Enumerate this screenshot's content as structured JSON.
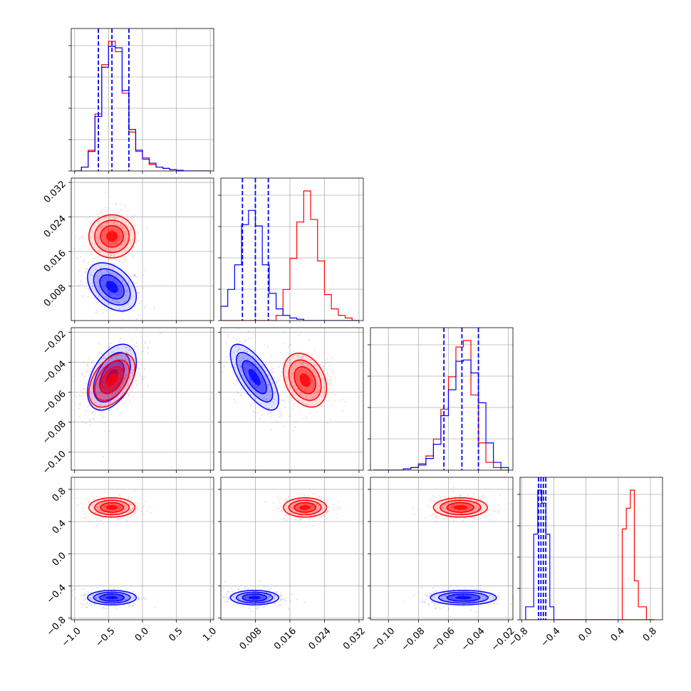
{
  "chart_data": {
    "type": "corner",
    "title": "",
    "parameters": 4,
    "series": [
      {
        "color": "#ff0000"
      },
      {
        "color": "#0000ff"
      }
    ],
    "ticks": {
      "p0": [
        {
          "v": -1.0,
          "label": "−1.0"
        },
        {
          "v": -0.5,
          "label": "−0.5"
        },
        {
          "v": 0.0,
          "label": "0.0"
        },
        {
          "v": 0.5,
          "label": "0.5"
        },
        {
          "v": 1.0,
          "label": "1.0"
        }
      ],
      "p1": [
        {
          "v": 0.008,
          "label": "0.008"
        },
        {
          "v": 0.016,
          "label": "0.016"
        },
        {
          "v": 0.024,
          "label": "0.024"
        },
        {
          "v": 0.032,
          "label": "0.032"
        }
      ],
      "p2": [
        {
          "v": -0.1,
          "label": "−0.10"
        },
        {
          "v": -0.08,
          "label": "−0.08"
        },
        {
          "v": -0.06,
          "label": "−0.06"
        },
        {
          "v": -0.04,
          "label": "−0.04"
        },
        {
          "v": -0.02,
          "label": "−0.02"
        }
      ],
      "p3": [
        {
          "v": -0.8,
          "label": "−0.8"
        },
        {
          "v": -0.4,
          "label": "−0.4"
        },
        {
          "v": 0.0,
          "label": "0.0"
        },
        {
          "v": 0.4,
          "label": "0.4"
        },
        {
          "v": 0.8,
          "label": "0.8"
        }
      ]
    },
    "axis_ranges": {
      "p0": [
        -1.05,
        1.05
      ],
      "p1": [
        0.0,
        0.033
      ],
      "p2": [
        -0.112,
        -0.017
      ],
      "p3": [
        -0.82,
        0.95
      ]
    },
    "grid": true,
    "quantile_lines_blue": {
      "p0": [
        -0.65,
        -0.45,
        -0.2
      ],
      "p1": [
        0.005,
        0.008,
        0.011
      ],
      "p2": [
        -0.063,
        -0.051,
        -0.04
      ],
      "p3": [
        -0.59,
        -0.56,
        -0.53,
        -0.5
      ]
    },
    "histograms": {
      "p0": {
        "edges": [
          -1.0,
          -0.9,
          -0.8,
          -0.7,
          -0.6,
          -0.5,
          -0.4,
          -0.3,
          -0.2,
          -0.1,
          0.0,
          0.1,
          0.2,
          0.3,
          0.4,
          0.5,
          0.6,
          0.7,
          0.8,
          0.9,
          1.0
        ],
        "red": [
          0,
          0.03,
          0.16,
          0.44,
          0.82,
          1.0,
          0.92,
          0.6,
          0.3,
          0.15,
          0.09,
          0.05,
          0.03,
          0.02,
          0.01,
          0.005,
          0,
          0,
          0,
          0
        ],
        "blue": [
          0,
          0.03,
          0.15,
          0.42,
          0.8,
          0.96,
          0.95,
          0.62,
          0.32,
          0.16,
          0.1,
          0.06,
          0.03,
          0.02,
          0.01,
          0.005,
          0,
          0,
          0,
          0
        ]
      },
      "p1": {
        "edges": [
          0.0,
          0.0016,
          0.0032,
          0.0048,
          0.0064,
          0.008,
          0.0096,
          0.0112,
          0.0128,
          0.0144,
          0.016,
          0.0176,
          0.0192,
          0.0208,
          0.0224,
          0.024,
          0.0256,
          0.0272,
          0.0288,
          0.0304,
          0.032
        ],
        "red": [
          0,
          0,
          0,
          0,
          0,
          0,
          0,
          0,
          0.04,
          0.24,
          0.48,
          0.76,
          1.0,
          0.78,
          0.46,
          0.2,
          0.09,
          0.04,
          0.02,
          0
        ],
        "blue": [
          0.11,
          0.24,
          0.43,
          0.74,
          0.85,
          0.73,
          0.43,
          0.21,
          0.09,
          0.04,
          0.02,
          0.01,
          0,
          0,
          0,
          0,
          0,
          0,
          0,
          0
        ]
      },
      "p2": {
        "edges": [
          -0.11,
          -0.105,
          -0.1,
          -0.095,
          -0.09,
          -0.085,
          -0.08,
          -0.075,
          -0.07,
          -0.065,
          -0.06,
          -0.055,
          -0.05,
          -0.045,
          -0.04,
          -0.035,
          -0.03,
          -0.025,
          -0.02
        ],
        "red": [
          0,
          0,
          0,
          0,
          0.01,
          0.02,
          0.05,
          0.11,
          0.24,
          0.47,
          0.72,
          0.95,
          1.0,
          0.58,
          0.21,
          0.06,
          0.02,
          0
        ],
        "blue": [
          0,
          0,
          0,
          0,
          0.01,
          0.02,
          0.04,
          0.09,
          0.2,
          0.42,
          0.62,
          0.84,
          0.85,
          0.75,
          0.52,
          0.21,
          0.06,
          0.02
        ]
      },
      "p3": {
        "edges": [
          -0.75,
          -0.7,
          -0.65,
          -0.6,
          -0.55,
          -0.5,
          -0.45,
          -0.4,
          -0.35,
          -0.3,
          -0.25,
          -0.2,
          -0.15,
          -0.1,
          -0.05,
          0.0,
          0.05,
          0.1,
          0.15,
          0.2,
          0.25,
          0.3,
          0.35,
          0.4,
          0.45,
          0.5,
          0.55,
          0.6,
          0.65,
          0.7,
          0.75,
          0.8,
          0.85
        ],
        "red": [
          0,
          0,
          0,
          0,
          0,
          0,
          0,
          0,
          0,
          0,
          0,
          0,
          0,
          0,
          0,
          0,
          0,
          0,
          0,
          0,
          0,
          0,
          0,
          0,
          0.7,
          0.86,
          1.0,
          0.3,
          0.1,
          0.1,
          0,
          0
        ],
        "blue": [
          0.1,
          0.1,
          0.66,
          1.0,
          0.9,
          0.66,
          0.1,
          0,
          0,
          0,
          0,
          0,
          0,
          0,
          0,
          0,
          0,
          0,
          0,
          0,
          0,
          0,
          0,
          0,
          0,
          0,
          0,
          0,
          0,
          0,
          0,
          0
        ]
      }
    },
    "distributions_2d": {
      "red": {
        "mean": [
          -0.45,
          0.0195,
          -0.052,
          0.575
        ],
        "std": [
          0.17,
          0.0025,
          0.009,
          0.06
        ],
        "corr": {
          "p0_p2": 0.45,
          "p1_p2": -0.3
        }
      },
      "blue": {
        "mean": [
          -0.45,
          0.0078,
          -0.05,
          -0.545
        ],
        "std": [
          0.18,
          0.0028,
          0.011,
          0.045
        ],
        "corr": {
          "p0_p1": -0.4,
          "p0_p2": 0.45,
          "p1_p2": -0.7
        }
      }
    }
  }
}
